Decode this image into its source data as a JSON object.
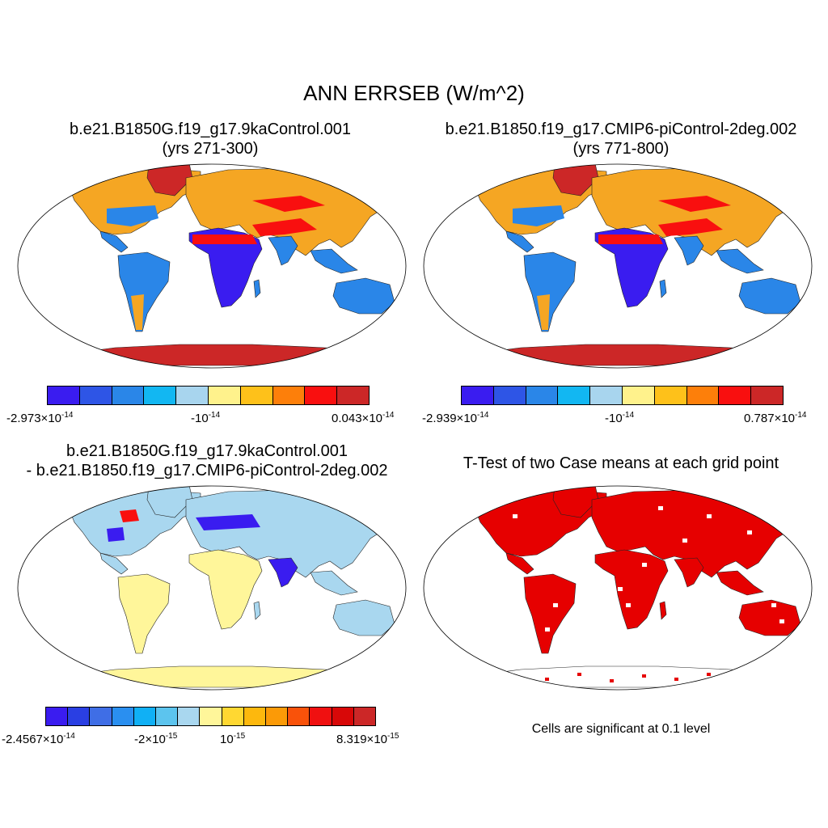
{
  "main_title": "ANN ERRSEB (W/m^2)",
  "panels": [
    {
      "id": "case1",
      "title_line1": "b.e21.B1850G.f19_g17.9kaControl.001",
      "title_line2": "(yrs 271-300)",
      "colorbar": {
        "colors": [
          "#3a1cf0",
          "#2e55e6",
          "#2a86e8",
          "#12b7f2",
          "#a8d5ee",
          "#fff28c",
          "#fec11a",
          "#fd7f0a",
          "#f90f0f",
          "#cc2727"
        ],
        "labels": [
          {
            "mant": "-2.973",
            "times": "×",
            "base": "10",
            "exp": "-14"
          },
          {
            "mant": "",
            "times": "",
            "base": "-10",
            "exp": "-14"
          },
          {
            "mant": "0.043",
            "times": "×",
            "base": "10",
            "exp": "-14"
          }
        ]
      }
    },
    {
      "id": "case2",
      "title_line1": "b.e21.B1850.f19_g17.CMIP6-piControl-2deg.002",
      "title_line2": "(yrs 771-800)",
      "colorbar": {
        "colors": [
          "#3a1cf0",
          "#2e55e6",
          "#2a86e8",
          "#12b7f2",
          "#a8d5ee",
          "#fff28c",
          "#fec11a",
          "#fd7f0a",
          "#f90f0f",
          "#cc2727"
        ],
        "labels": [
          {
            "mant": "-2.939",
            "times": "×",
            "base": "10",
            "exp": "-14"
          },
          {
            "mant": "",
            "times": "",
            "base": "-10",
            "exp": "-14"
          },
          {
            "mant": "0.787",
            "times": "×",
            "base": "10",
            "exp": "-14"
          }
        ]
      }
    },
    {
      "id": "diff",
      "title_line1": "b.e21.B1850G.f19_g17.9kaControl.001",
      "title_line2": "- b.e21.B1850.f19_g17.CMIP6-piControl-2deg.002",
      "colorbar": {
        "colors": [
          "#3a1cf0",
          "#2a3fe3",
          "#3f6ee6",
          "#2a8ff0",
          "#10b0f5",
          "#5cc4ee",
          "#a9d7ef",
          "#fff69a",
          "#ffd832",
          "#fdb80d",
          "#fb9a07",
          "#f9520a",
          "#f01010",
          "#d80808",
          "#cc2727"
        ],
        "labels": [
          {
            "mant": "-2.4567",
            "times": "×",
            "base": "10",
            "exp": "-14"
          },
          {
            "mant": "-2",
            "times": "×",
            "base": "10",
            "exp": "-15"
          },
          {
            "mant": "",
            "times": "",
            "base": "10",
            "exp": "-15"
          },
          {
            "mant": "8.319",
            "times": "×",
            "base": "10",
            "exp": "-15"
          }
        ]
      }
    },
    {
      "id": "ttest",
      "title_line1": "T-Test of two Case means at each grid point",
      "note": "Cells are significant at 0.1 level"
    }
  ],
  "colors": {
    "warm_land": "#f5a623",
    "hot_land": "#f90f0f",
    "cool_land": "#2a86e8",
    "cold_land": "#3a1cf0",
    "ice": "#cc2727",
    "diff_land": "#a9d7ef",
    "diff_neutral": "#fff69a",
    "significant": "#e60000"
  }
}
